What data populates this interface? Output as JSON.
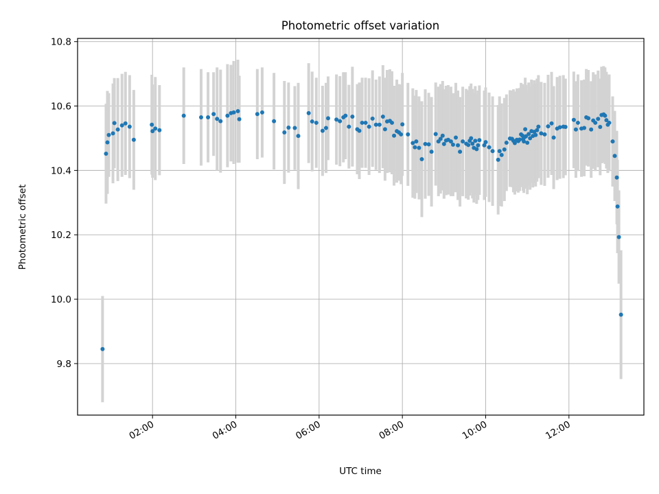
{
  "chart_data": {
    "type": "scatter",
    "title": "Photometric offset variation",
    "xlabel": "UTC time",
    "ylabel": "Photometric offset",
    "xlim_hours": [
      0.2,
      13.8
    ],
    "ylim": [
      9.64,
      10.81
    ],
    "x_ticks": [
      {
        "hour": 2,
        "label": "02:00"
      },
      {
        "hour": 4,
        "label": "04:00"
      },
      {
        "hour": 6,
        "label": "06:00"
      },
      {
        "hour": 8,
        "label": "08:00"
      },
      {
        "hour": 10,
        "label": "10:00"
      },
      {
        "hour": 12,
        "label": "12:00"
      }
    ],
    "y_ticks": [
      {
        "value": 9.8,
        "label": "9.8"
      },
      {
        "value": 10.0,
        "label": "10.0"
      },
      {
        "value": 10.2,
        "label": "10.2"
      },
      {
        "value": 10.4,
        "label": "10.4"
      },
      {
        "value": 10.6,
        "label": "10.6"
      },
      {
        "value": 10.8,
        "label": "10.8"
      }
    ],
    "grid": true,
    "marker_color": "#1f77b4",
    "errorbar_color": "#d3d3d3",
    "points_time_value_error": [
      [
        "00:48",
        9.845,
        0.165
      ],
      [
        "00:53",
        10.452,
        0.155
      ],
      [
        "00:55",
        10.487,
        0.16
      ],
      [
        "00:57",
        10.51,
        0.13
      ],
      [
        "01:03",
        10.515,
        0.155
      ],
      [
        "01:05",
        10.547,
        0.14
      ],
      [
        "01:10",
        10.527,
        0.16
      ],
      [
        "01:16",
        10.54,
        0.16
      ],
      [
        "01:21",
        10.546,
        0.16
      ],
      [
        "01:27",
        10.536,
        0.16
      ],
      [
        "01:33",
        10.495,
        0.155
      ],
      [
        "01:59",
        10.542,
        0.155
      ],
      [
        "02:00",
        10.522,
        0.145
      ],
      [
        "02:04",
        10.53,
        0.16
      ],
      [
        "02:10",
        10.525,
        0.14
      ],
      [
        "02:45",
        10.57,
        0.15
      ],
      [
        "03:10",
        10.565,
        0.15
      ],
      [
        "03:20",
        10.565,
        0.14
      ],
      [
        "03:28",
        10.575,
        0.13
      ],
      [
        "03:33",
        10.56,
        0.16
      ],
      [
        "03:38",
        10.553,
        0.16
      ],
      [
        "03:48",
        10.57,
        0.16
      ],
      [
        "03:53",
        10.578,
        0.15
      ],
      [
        "03:57",
        10.58,
        0.16
      ],
      [
        "04:03",
        10.584,
        0.16
      ],
      [
        "04:05",
        10.559,
        0.135
      ],
      [
        "04:31",
        10.575,
        0.14
      ],
      [
        "04:38",
        10.58,
        0.14
      ],
      [
        "04:55",
        10.553,
        0.15
      ],
      [
        "05:10",
        10.518,
        0.16
      ],
      [
        "05:16",
        10.533,
        0.14
      ],
      [
        "05:25",
        10.532,
        0.13
      ],
      [
        "05:30",
        10.507,
        0.165
      ],
      [
        "05:45",
        10.578,
        0.155
      ],
      [
        "05:50",
        10.552,
        0.155
      ],
      [
        "05:56",
        10.548,
        0.14
      ],
      [
        "06:05",
        10.523,
        0.14
      ],
      [
        "06:10",
        10.532,
        0.14
      ],
      [
        "06:13",
        10.562,
        0.13
      ],
      [
        "06:25",
        10.558,
        0.14
      ],
      [
        "06:30",
        10.553,
        0.14
      ],
      [
        "06:35",
        10.565,
        0.14
      ],
      [
        "06:38",
        10.57,
        0.135
      ],
      [
        "06:43",
        10.536,
        0.13
      ],
      [
        "06:48",
        10.567,
        0.155
      ],
      [
        "06:55",
        10.528,
        0.14
      ],
      [
        "06:58",
        10.523,
        0.15
      ],
      [
        "07:02",
        10.548,
        0.14
      ],
      [
        "07:07",
        10.548,
        0.14
      ],
      [
        "07:12",
        10.536,
        0.15
      ],
      [
        "07:17",
        10.561,
        0.15
      ],
      [
        "07:22",
        10.542,
        0.14
      ],
      [
        "07:27",
        10.542,
        0.15
      ],
      [
        "07:32",
        10.567,
        0.16
      ],
      [
        "07:35",
        10.528,
        0.16
      ],
      [
        "07:38",
        10.552,
        0.16
      ],
      [
        "07:42",
        10.554,
        0.16
      ],
      [
        "07:45",
        10.548,
        0.16
      ],
      [
        "07:48",
        10.508,
        0.155
      ],
      [
        "07:52",
        10.522,
        0.16
      ],
      [
        "07:55",
        10.518,
        0.15
      ],
      [
        "07:58",
        10.512,
        0.155
      ],
      [
        "08:00",
        10.543,
        0.16
      ],
      [
        "08:08",
        10.512,
        0.16
      ],
      [
        "08:15",
        10.485,
        0.17
      ],
      [
        "08:18",
        10.472,
        0.16
      ],
      [
        "08:20",
        10.49,
        0.16
      ],
      [
        "08:24",
        10.47,
        0.16
      ],
      [
        "08:28",
        10.435,
        0.18
      ],
      [
        "08:33",
        10.482,
        0.17
      ],
      [
        "08:38",
        10.481,
        0.16
      ],
      [
        "08:42",
        10.458,
        0.17
      ],
      [
        "08:48",
        10.513,
        0.16
      ],
      [
        "08:52",
        10.49,
        0.17
      ],
      [
        "08:55",
        10.498,
        0.17
      ],
      [
        "08:58",
        10.508,
        0.17
      ],
      [
        "09:00",
        10.482,
        0.17
      ],
      [
        "09:03",
        10.493,
        0.17
      ],
      [
        "09:06",
        10.495,
        0.17
      ],
      [
        "09:10",
        10.49,
        0.17
      ],
      [
        "09:13",
        10.48,
        0.16
      ],
      [
        "09:17",
        10.502,
        0.17
      ],
      [
        "09:20",
        10.478,
        0.17
      ],
      [
        "09:23",
        10.458,
        0.17
      ],
      [
        "09:27",
        10.49,
        0.17
      ],
      [
        "09:32",
        10.483,
        0.17
      ],
      [
        "09:35",
        10.479,
        0.17
      ],
      [
        "09:37",
        10.492,
        0.17
      ],
      [
        "09:39",
        10.5,
        0.17
      ],
      [
        "09:41",
        10.483,
        0.17
      ],
      [
        "09:43",
        10.47,
        0.17
      ],
      [
        "09:45",
        10.492,
        0.17
      ],
      [
        "09:47",
        10.466,
        0.17
      ],
      [
        "09:49",
        10.478,
        0.17
      ],
      [
        "09:51",
        10.494,
        0.17
      ],
      [
        "09:58",
        10.478,
        0.17
      ],
      [
        "10:00",
        10.488,
        0.17
      ],
      [
        "10:05",
        10.472,
        0.17
      ],
      [
        "10:10",
        10.46,
        0.17
      ],
      [
        "10:18",
        10.433,
        0.17
      ],
      [
        "10:20",
        10.46,
        0.17
      ],
      [
        "10:23",
        10.448,
        0.16
      ],
      [
        "10:27",
        10.465,
        0.16
      ],
      [
        "10:30",
        10.486,
        0.15
      ],
      [
        "10:35",
        10.499,
        0.15
      ],
      [
        "10:38",
        10.498,
        0.15
      ],
      [
        "10:40",
        10.492,
        0.16
      ],
      [
        "10:42",
        10.485,
        0.16
      ],
      [
        "10:45",
        10.495,
        0.16
      ],
      [
        "10:47",
        10.491,
        0.16
      ],
      [
        "10:49",
        10.496,
        0.16
      ],
      [
        "10:51",
        10.512,
        0.16
      ],
      [
        "10:53",
        10.508,
        0.16
      ],
      [
        "10:54",
        10.497,
        0.16
      ],
      [
        "10:55",
        10.49,
        0.16
      ],
      [
        "10:56",
        10.503,
        0.16
      ],
      [
        "10:57",
        10.528,
        0.16
      ],
      [
        "10:58",
        10.506,
        0.16
      ],
      [
        "11:00",
        10.486,
        0.16
      ],
      [
        "11:02",
        10.513,
        0.16
      ],
      [
        "11:04",
        10.5,
        0.16
      ],
      [
        "11:06",
        10.522,
        0.16
      ],
      [
        "11:08",
        10.507,
        0.16
      ],
      [
        "11:10",
        10.52,
        0.16
      ],
      [
        "11:12",
        10.51,
        0.16
      ],
      [
        "11:14",
        10.525,
        0.16
      ],
      [
        "11:16",
        10.536,
        0.16
      ],
      [
        "11:20",
        10.515,
        0.16
      ],
      [
        "11:25",
        10.512,
        0.16
      ],
      [
        "11:30",
        10.537,
        0.16
      ],
      [
        "11:35",
        10.546,
        0.16
      ],
      [
        "11:38",
        10.502,
        0.16
      ],
      [
        "11:43",
        10.53,
        0.16
      ],
      [
        "11:47",
        10.534,
        0.16
      ],
      [
        "11:52",
        10.536,
        0.16
      ],
      [
        "11:55",
        10.535,
        0.15
      ],
      [
        "12:07",
        10.557,
        0.15
      ],
      [
        "12:10",
        10.527,
        0.15
      ],
      [
        "12:13",
        10.548,
        0.15
      ],
      [
        "12:18",
        10.53,
        0.15
      ],
      [
        "12:22",
        10.532,
        0.15
      ],
      [
        "12:25",
        10.565,
        0.15
      ],
      [
        "12:28",
        10.562,
        0.15
      ],
      [
        "12:32",
        10.527,
        0.15
      ],
      [
        "12:35",
        10.555,
        0.15
      ],
      [
        "12:38",
        10.548,
        0.15
      ],
      [
        "12:42",
        10.56,
        0.15
      ],
      [
        "12:45",
        10.535,
        0.15
      ],
      [
        "12:47",
        10.572,
        0.15
      ],
      [
        "12:50",
        10.574,
        0.15
      ],
      [
        "12:52",
        10.57,
        0.15
      ],
      [
        "12:54",
        10.556,
        0.15
      ],
      [
        "12:56",
        10.542,
        0.15
      ],
      [
        "12:58",
        10.548,
        0.15
      ],
      [
        "13:03",
        10.49,
        0.14
      ],
      [
        "13:06",
        10.445,
        0.14
      ],
      [
        "13:09",
        10.378,
        0.145
      ],
      [
        "13:10",
        10.288,
        0.145
      ],
      [
        "13:12",
        10.193,
        0.145
      ],
      [
        "13:15",
        9.952,
        0.2
      ]
    ]
  }
}
